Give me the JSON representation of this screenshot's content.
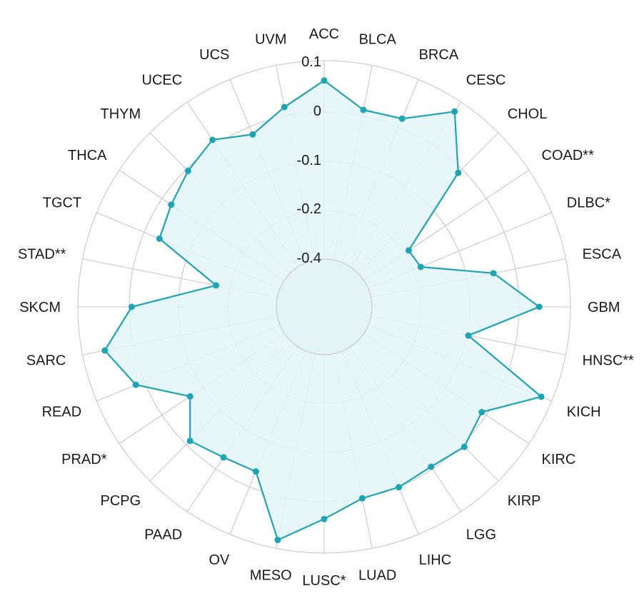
{
  "chart_data": {
    "type": "radar",
    "title": "",
    "categories": [
      "ACC",
      "BLCA",
      "BRCA",
      "CESC",
      "CHOL",
      "COAD**",
      "DLBC*",
      "ESCA",
      "GBM",
      "HNSC**",
      "KICH",
      "KIRC",
      "KIRP",
      "LGG",
      "LIHC",
      "LUAD",
      "LUSC*",
      "MESO",
      "OV",
      "PAAD",
      "PCPG",
      "PRAD*",
      "READ",
      "SARC",
      "SKCM",
      "STAD**",
      "TGCT",
      "THCA",
      "THYM",
      "UCEC",
      "UCS",
      "UVM"
    ],
    "series": [
      {
        "values": [
          0.03,
          -0.06,
          -0.05,
          0.06,
          -0.1,
          -0.41,
          -0.4,
          -0.16,
          -0.01,
          -0.25,
          0.06,
          -0.1,
          -0.07,
          -0.09,
          -0.08,
          -0.08,
          -0.02,
          0.07,
          -0.14,
          -0.13,
          -0.1,
          -0.2,
          -0.05,
          0.02,
          -0.09,
          -0.38,
          -0.14,
          -0.12,
          -0.09,
          -0.06,
          -0.11,
          -0.05
        ]
      }
    ],
    "rlim": [
      -0.6,
      0.1
    ],
    "ticks": [
      0.1,
      0,
      -0.1,
      -0.2,
      -0.4
    ],
    "tick_labels": [
      "0.1",
      "0",
      "-0.1",
      "-0.2",
      "-0.4"
    ],
    "grid": true,
    "colors": {
      "line": "#1ea5b3",
      "fill": "#e3f4f8",
      "grid": "#c4c4c4",
      "inner_fill": "#e3f4f8"
    }
  }
}
